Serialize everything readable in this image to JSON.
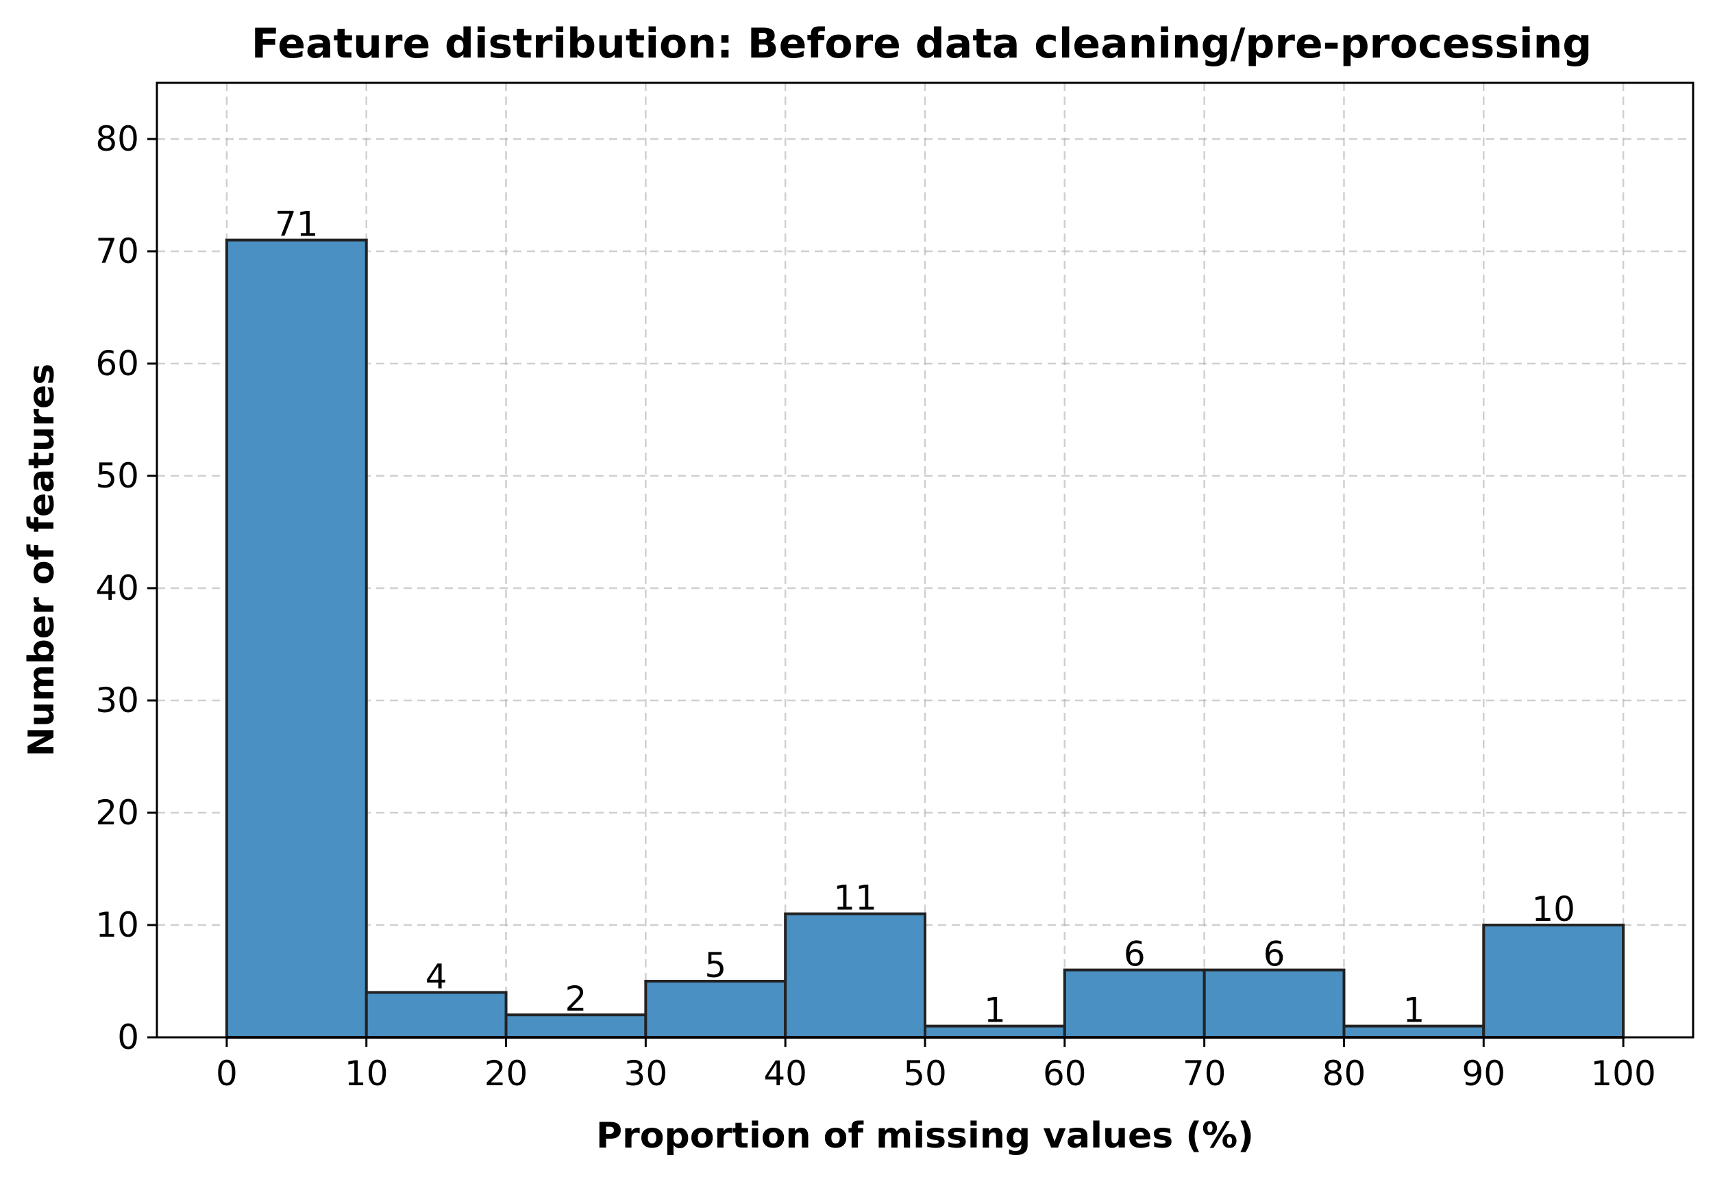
{
  "chart_data": {
    "type": "bar",
    "title": "Feature distribution: Before data cleaning/pre-processing",
    "xlabel": "Proportion of missing values (%)",
    "ylabel": "Number of features",
    "bin_edges": [
      0,
      10,
      20,
      30,
      40,
      50,
      60,
      70,
      80,
      90,
      100
    ],
    "values": [
      71,
      4,
      2,
      5,
      11,
      1,
      6,
      6,
      1,
      10
    ],
    "data_labels": [
      "71",
      "4",
      "2",
      "5",
      "11",
      "1",
      "6",
      "6",
      "1",
      "10"
    ],
    "x_ticks": [
      0,
      10,
      20,
      30,
      40,
      50,
      60,
      70,
      80,
      90,
      100
    ],
    "x_tick_labels": [
      "0",
      "10",
      "20",
      "30",
      "40",
      "50",
      "60",
      "70",
      "80",
      "90",
      "100"
    ],
    "y_ticks": [
      0,
      10,
      20,
      30,
      40,
      50,
      60,
      70,
      80
    ],
    "y_tick_labels": [
      "0",
      "10",
      "20",
      "30",
      "40",
      "50",
      "60",
      "70",
      "80"
    ],
    "xlim": [
      -5,
      105
    ],
    "ylim": [
      0,
      85
    ],
    "grid": true,
    "bar_color": "#4a90c2",
    "edge_color": "#222222"
  }
}
